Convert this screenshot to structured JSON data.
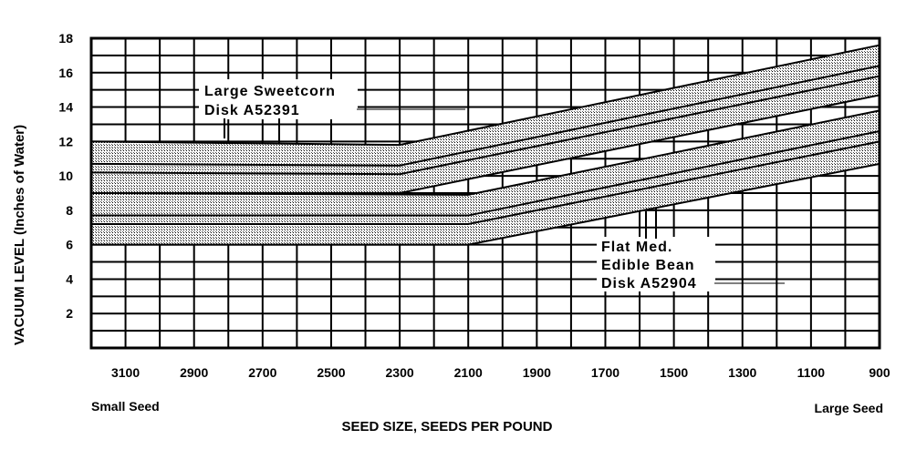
{
  "chart_data": {
    "type": "area",
    "title": "",
    "xlabel": "SEED SIZE, SEEDS PER POUND",
    "ylabel": "VACUUM LEVEL  (Inches of Water)",
    "x_reversed": true,
    "xlim": [
      3200,
      900
    ],
    "ylim": [
      0,
      18
    ],
    "x_ticks": [
      3100,
      2900,
      2700,
      2500,
      2300,
      2100,
      1900,
      1700,
      1500,
      1300,
      1100,
      900
    ],
    "y_ticks": [
      2,
      4,
      6,
      8,
      10,
      12,
      14,
      16,
      18
    ],
    "grid": true,
    "x_left_note": "Small Seed",
    "x_right_note": "Large Seed",
    "series": [
      {
        "name": "Large Sweetcorn Disk A52391",
        "annotation_lines": [
          "Large  Sweetcorn",
          "Disk  A52391"
        ],
        "lower": {
          "x": [
            3200,
            2300,
            900
          ],
          "y": [
            9.0,
            9.0,
            14.7
          ]
        },
        "upper": {
          "x": [
            3200,
            2300,
            900
          ],
          "y": [
            12.0,
            11.8,
            17.6
          ]
        },
        "inner_lines": [
          {
            "x": [
              3200,
              2300,
              900
            ],
            "y": [
              10.2,
              10.1,
              15.8
            ]
          },
          {
            "x": [
              3200,
              2300,
              900
            ],
            "y": [
              10.7,
              10.6,
              16.4
            ]
          }
        ]
      },
      {
        "name": "Flat Med. Edible Bean Disk A52904",
        "annotation_lines": [
          "Flat  Med.",
          "Edible  Bean",
          "Disk  A52904"
        ],
        "lower": {
          "x": [
            3200,
            2100,
            900
          ],
          "y": [
            6.0,
            6.0,
            10.7
          ]
        },
        "upper": {
          "x": [
            3200,
            2100,
            900
          ],
          "y": [
            9.0,
            8.9,
            13.8
          ]
        },
        "inner_lines": [
          {
            "x": [
              3200,
              2100,
              900
            ],
            "y": [
              7.2,
              7.2,
              12.0
            ]
          },
          {
            "x": [
              3200,
              2100,
              900
            ],
            "y": [
              7.7,
              7.7,
              12.6
            ]
          }
        ]
      }
    ]
  }
}
